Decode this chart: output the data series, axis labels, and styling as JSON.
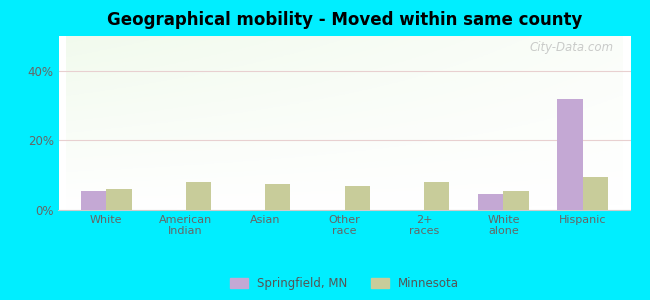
{
  "title": "Geographical mobility - Moved within same county",
  "categories": [
    "White",
    "American\nIndian",
    "Asian",
    "Other\nrace",
    "2+\nraces",
    "White\nalone",
    "Hispanic"
  ],
  "springfield_values": [
    5.5,
    0,
    0,
    0,
    0,
    4.5,
    32
  ],
  "minnesota_values": [
    6,
    8,
    7.5,
    7,
    8,
    5.5,
    9.5
  ],
  "springfield_color": "#c4a8d4",
  "minnesota_color": "#c8cc9a",
  "background_color": "#00eeff",
  "ylim": [
    0,
    50
  ],
  "yticks": [
    0,
    20,
    40
  ],
  "bar_width": 0.32,
  "legend_labels": [
    "Springfield, MN",
    "Minnesota"
  ],
  "watermark": "City-Data.com"
}
